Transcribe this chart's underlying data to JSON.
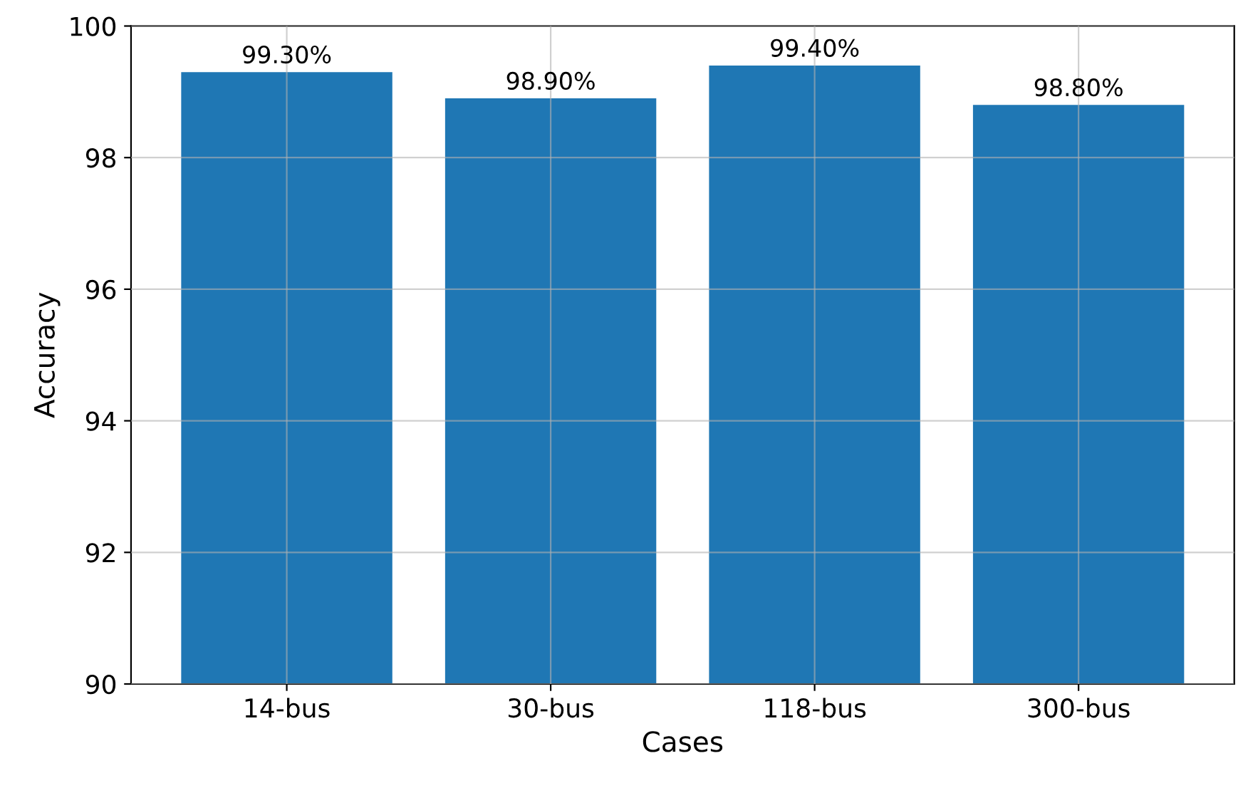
{
  "chart_data": {
    "type": "bar",
    "xlabel": "Cases",
    "ylabel": "Accuracy",
    "categories": [
      "14-bus",
      "30-bus",
      "118-bus",
      "300-bus"
    ],
    "values": [
      99.3,
      98.9,
      99.4,
      98.8
    ],
    "value_labels": [
      "99.30%",
      "98.90%",
      "99.40%",
      "98.80%"
    ],
    "color": "#1f77b4",
    "ylim": [
      90,
      100
    ],
    "yticks": [
      90,
      92,
      94,
      96,
      98,
      100
    ],
    "grid": true
  }
}
